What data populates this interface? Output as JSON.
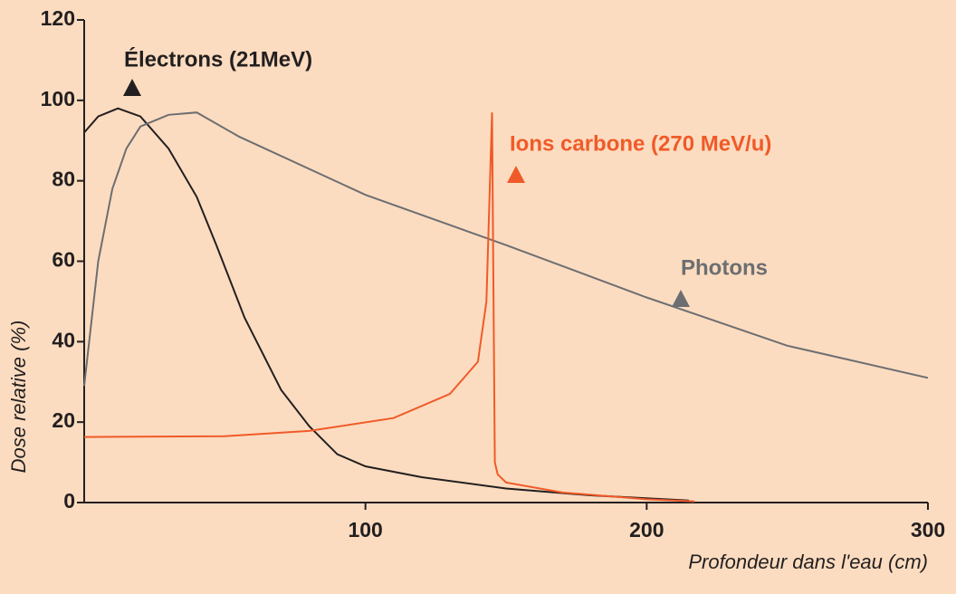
{
  "chart_data": {
    "type": "line",
    "xlabel": "Profondeur dans l'eau (cm)",
    "ylabel": "Dose relative (%)",
    "xlim": [
      0,
      300
    ],
    "xticks": [
      100,
      200,
      300
    ],
    "ylim": [
      0,
      120
    ],
    "yticks": [
      0,
      20,
      40,
      60,
      80,
      100,
      120
    ],
    "series": [
      {
        "name": "Électrons (21MeV)",
        "color": "#231f20",
        "x": [
          0,
          5,
          12,
          20,
          30,
          40,
          47,
          57,
          70,
          80,
          90,
          100,
          120,
          150,
          180,
          215
        ],
        "values": [
          92,
          96,
          98,
          96,
          88,
          76,
          64,
          46,
          28,
          19,
          12,
          9,
          6.3,
          3.5,
          1.8,
          0.5
        ]
      },
      {
        "name": "Photons",
        "color": "#6d6e71",
        "x": [
          0,
          5,
          10,
          15,
          20,
          30,
          40,
          55,
          100,
          150,
          200,
          250,
          300
        ],
        "values": [
          29,
          60,
          78,
          88,
          93.5,
          96.4,
          97,
          91,
          76.5,
          64,
          51,
          39,
          31
        ]
      },
      {
        "name": "Ions carbone (270 MeV/u)",
        "color": "#f05a28",
        "x": [
          0,
          50,
          80,
          110,
          130,
          140,
          143,
          145,
          146,
          147,
          150,
          170,
          200,
          217
        ],
        "values": [
          16.3,
          16.5,
          17.8,
          21,
          27,
          35,
          50,
          97,
          10,
          7,
          5,
          2.5,
          0.8,
          0.3
        ]
      }
    ]
  }
}
